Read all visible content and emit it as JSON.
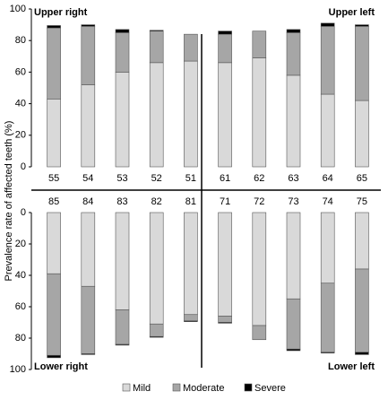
{
  "chart_data": {
    "type": "bar",
    "stacked": true,
    "y_label": "Prevalence rate of affected teeth (%)",
    "legend": [
      {
        "name": "Mild",
        "color": "#d9d9d9"
      },
      {
        "name": "Moderate",
        "color": "#a6a6a6"
      },
      {
        "name": "Severe",
        "color": "#000000"
      }
    ],
    "panels": [
      {
        "quadrant_labels": [
          "Upper right",
          "Upper left"
        ],
        "inverted": false,
        "categories": [
          "55",
          "54",
          "53",
          "52",
          "51",
          "61",
          "62",
          "63",
          "64",
          "65"
        ],
        "series": [
          {
            "values": [
              43,
              52,
              60,
              66,
              67,
              66,
              69,
              58,
              46,
              42
            ]
          },
          {
            "values": [
              45,
              37,
              25,
              20,
              17,
              18,
              17,
              27,
              43,
              47
            ]
          },
          {
            "values": [
              1.5,
              1,
              2,
              0.5,
              0,
              2,
              0,
              2,
              2,
              1
            ]
          }
        ],
        "ylim": [
          0,
          100
        ],
        "yticks": [
          0,
          20,
          40,
          60,
          80,
          100
        ]
      },
      {
        "quadrant_labels": [
          "Lower right",
          "Lower left"
        ],
        "inverted": true,
        "categories": [
          "85",
          "84",
          "83",
          "82",
          "81",
          "71",
          "72",
          "73",
          "74",
          "75"
        ],
        "series": [
          {
            "values": [
              39,
              47,
              62,
              71,
              65,
              66,
              72,
              55,
              45,
              36
            ]
          },
          {
            "values": [
              52,
              43,
              22,
              8,
              4,
              4,
              9,
              32,
              44,
              53
            ]
          },
          {
            "values": [
              1.5,
              0.5,
              0.5,
              0.5,
              0.5,
              0.5,
              0,
              1,
              0.5,
              1.5
            ]
          }
        ],
        "ylim": [
          0,
          100
        ],
        "yticks": [
          0,
          20,
          40,
          60,
          80,
          100
        ]
      }
    ]
  }
}
